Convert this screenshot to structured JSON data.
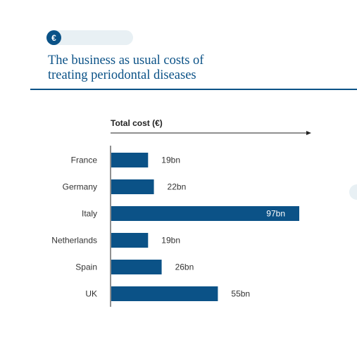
{
  "badge": {
    "icon": "euro-icon",
    "symbol": "€"
  },
  "heading": {
    "line1": "The business as usual costs of",
    "line2": "treating periodontal diseases"
  },
  "colors": {
    "accent": "#0b5287",
    "pill": "#e8f0f4"
  },
  "chart_data": {
    "type": "bar",
    "orientation": "horizontal",
    "xlabel": "Total cost (€)",
    "categories": [
      "France",
      "Germany",
      "Italy",
      "Netherlands",
      "Spain",
      "UK"
    ],
    "values": [
      19,
      22,
      97,
      19,
      26,
      55
    ],
    "value_labels": [
      "19bn",
      "22bn",
      "97bn",
      "19bn",
      "26bn",
      "55bn"
    ],
    "unit": "bn",
    "xlim": [
      0,
      100
    ],
    "grid": false,
    "legend": "none"
  }
}
